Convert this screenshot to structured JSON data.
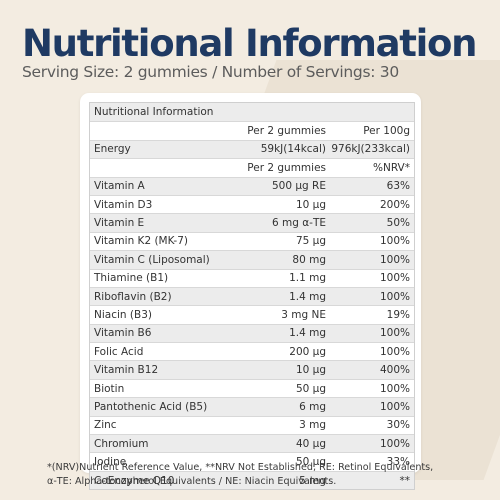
{
  "header": {
    "title": "Nutritional Information",
    "subtitle": "Serving Size: 2 gummies  / Number of Servings: 30"
  },
  "table": {
    "caption": "Nutritional Information",
    "energy_header": {
      "per_serving": "Per 2 gummies",
      "per_100g": "Per 100g"
    },
    "energy_row": {
      "label": "Energy",
      "per_serving": "59kJ(14kcal)",
      "per_100g": "976kJ(233kcal)"
    },
    "nutrient_header": {
      "per_serving": "Per 2 gummies",
      "nrv": "%NRV*"
    },
    "rows": [
      {
        "name": "Vitamin A",
        "amount": "500 µg RE",
        "nrv": "63%"
      },
      {
        "name": "Vitamin D3",
        "amount": "10 µg",
        "nrv": "200%"
      },
      {
        "name": "Vitamin E",
        "amount": "6 mg α-TE",
        "nrv": "50%"
      },
      {
        "name": "Vitamin K2 (MK-7)",
        "amount": "75 µg",
        "nrv": "100%"
      },
      {
        "name": "Vitamin C (Liposomal)",
        "amount": "80 mg",
        "nrv": "100%"
      },
      {
        "name": "Thiamine (B1)",
        "amount": "1.1 mg",
        "nrv": "100%"
      },
      {
        "name": "Riboflavin (B2)",
        "amount": "1.4 mg",
        "nrv": "100%"
      },
      {
        "name": "Niacin (B3)",
        "amount": "3 mg NE",
        "nrv": "19%"
      },
      {
        "name": "Vitamin B6",
        "amount": "1.4 mg",
        "nrv": "100%"
      },
      {
        "name": "Folic Acid",
        "amount": "200 µg",
        "nrv": "100%"
      },
      {
        "name": "Vitamin B12",
        "amount": "10 µg",
        "nrv": "400%"
      },
      {
        "name": "Biotin",
        "amount": "50 µg",
        "nrv": "100%"
      },
      {
        "name": "Pantothenic Acid (B5)",
        "amount": "6 mg",
        "nrv": "100%"
      },
      {
        "name": "Zinc",
        "amount": "3 mg",
        "nrv": "30%"
      },
      {
        "name": "Chromium",
        "amount": "40 µg",
        "nrv": "100%"
      },
      {
        "name": "Iodine",
        "amount": "50 µg",
        "nrv": "33%"
      },
      {
        "name": "CoEnzyme Q10",
        "amount": "5 mg",
        "nrv": "**"
      }
    ]
  },
  "footnote": {
    "line1": "*(NRV)Nutrient Reference Value, **NRV Not Established, RE: Retinol Equivalents,",
    "line2": "α-TE: Alpha-tocopherol Equivalents / NE: Niacin Equivalents."
  }
}
